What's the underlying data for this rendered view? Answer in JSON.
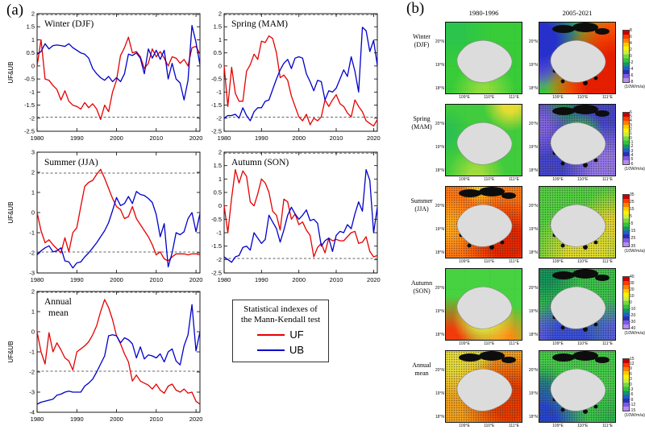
{
  "colors": {
    "uf_red": "#e60000",
    "ub_blue": "#0000cc",
    "dashed_line": "#666666",
    "island_gray": "#dcdcdc",
    "colorbar_palette": [
      "#c80000",
      "#ff3c00",
      "#ff8200",
      "#ffc800",
      "#fff200",
      "#c8ee46",
      "#78d83c",
      "#32c43c",
      "#149664",
      "#1e5fd2",
      "#2830b0",
      "#7e5ae0",
      "#b48cf0"
    ]
  },
  "panel_a": {
    "label": "(a)",
    "xlabel_ticks": [
      1980,
      1990,
      2000,
      2010,
      2020
    ],
    "significance_level": 1.96
  },
  "legend": {
    "title_line1": "Statistical indexes of",
    "title_line2": "the Mann-Kendall test",
    "uf_label": "UF",
    "ub_label": "UB"
  },
  "chart_data": [
    {
      "type": "line",
      "title": "Winter (DJF)",
      "ylabel": "UF&UB",
      "x_start": 1980,
      "x_end": 2021,
      "xticks": [
        1980,
        1990,
        2000,
        2010,
        2020
      ],
      "ylim": [
        -2.5,
        2
      ],
      "yticks": [
        2,
        1.5,
        1,
        0.5,
        0,
        -0.5,
        -1,
        -1.5,
        -2,
        -2.5
      ],
      "dashed_at": [
        1.96,
        -1.96
      ],
      "series": [
        {
          "name": "UF",
          "values": [
            0.0,
            1.0,
            -0.5,
            -0.55,
            -0.75,
            -0.9,
            -1.3,
            -0.95,
            -1.35,
            -1.5,
            -1.55,
            -1.65,
            -1.4,
            -1.6,
            -1.45,
            -1.65,
            -2.05,
            -1.5,
            -1.75,
            -1.0,
            -0.55,
            0.4,
            0.7,
            1.1,
            0.5,
            0.55,
            0.35,
            -0.1,
            0.1,
            0.65,
            0.35,
            0.55,
            0.3,
            0.0,
            0.35,
            0.3,
            0.1,
            0.25,
            0.0,
            0.7,
            0.75,
            0.45
          ]
        },
        {
          "name": "UB",
          "values": [
            0.45,
            0.55,
            0.85,
            0.65,
            0.78,
            0.8,
            0.78,
            0.75,
            0.85,
            0.7,
            0.6,
            0.5,
            0.45,
            0.3,
            -0.1,
            -0.3,
            -0.45,
            -0.55,
            -0.4,
            -0.6,
            -0.45,
            -0.6,
            -0.3,
            0.45,
            0.4,
            0.5,
            0.3,
            -0.3,
            0.65,
            0.3,
            0.6,
            0.25,
            0.6,
            -0.5,
            0.1,
            -0.5,
            -0.65,
            -1.3,
            -0.55,
            1.55,
            0.9,
            0.05
          ]
        }
      ]
    },
    {
      "type": "line",
      "title": "Spring (MAM)",
      "ylabel": "",
      "x_start": 1980,
      "x_end": 2021,
      "xticks": [
        1980,
        1990,
        2000,
        2010,
        2020
      ],
      "ylim": [
        -2.5,
        2
      ],
      "yticks": [
        2,
        1.5,
        1,
        0.5,
        0,
        -0.5,
        -1,
        -1.5,
        -2,
        -2.5
      ],
      "dashed_at": [
        1.96,
        -1.96
      ],
      "series": [
        {
          "name": "UF",
          "values": [
            0.0,
            -1.55,
            -0.05,
            -1.05,
            -1.35,
            -1.35,
            -0.2,
            0.05,
            0.45,
            0.25,
            0.95,
            0.9,
            1.15,
            1.05,
            0.5,
            -0.45,
            -0.35,
            -0.55,
            -1.15,
            -1.55,
            -1.95,
            -2.1,
            -1.85,
            -2.25,
            -2.0,
            -2.1,
            -1.95,
            -1.3,
            -1.55,
            -1.3,
            -1.1,
            -1.45,
            -1.55,
            -1.8,
            -1.95,
            -1.3,
            -1.55,
            -1.75,
            -2.1,
            -2.2,
            -2.3,
            -2.05
          ]
        },
        {
          "name": "UB",
          "values": [
            -2.0,
            -1.9,
            -1.9,
            -1.85,
            -2.0,
            -1.6,
            -1.9,
            -2.1,
            -1.75,
            -1.6,
            -1.6,
            -1.35,
            -1.3,
            -0.9,
            -0.5,
            -0.15,
            0.1,
            0.25,
            -0.1,
            0.3,
            0.35,
            0.3,
            -0.3,
            -0.6,
            -0.95,
            -0.55,
            -0.6,
            -1.3,
            -0.95,
            -1.0,
            -0.85,
            -0.5,
            -0.15,
            -0.4,
            0.35,
            -0.2,
            -1.0,
            1.48,
            1.35,
            0.55,
            0.98,
            0.02
          ]
        }
      ]
    },
    {
      "type": "line",
      "title": "Summer (JJA)",
      "ylabel": "UF&UB",
      "x_start": 1980,
      "x_end": 2021,
      "xticks": [
        1980,
        1990,
        2000,
        2010,
        2020
      ],
      "ylim": [
        -3,
        3
      ],
      "yticks": [
        3,
        2,
        1,
        0,
        -1,
        -2,
        -3
      ],
      "dashed_at": [
        1.96,
        -1.96
      ],
      "series": [
        {
          "name": "UF",
          "values": [
            0.0,
            -0.9,
            -1.5,
            -1.35,
            -1.6,
            -1.8,
            -2.0,
            -1.25,
            -1.95,
            -1.0,
            -0.75,
            0.3,
            1.3,
            1.5,
            1.6,
            1.9,
            2.15,
            1.7,
            1.2,
            0.7,
            0.3,
            0.15,
            -0.3,
            -0.2,
            0.3,
            -0.3,
            -0.6,
            -0.9,
            -1.2,
            -1.6,
            -2.1,
            -1.95,
            -2.3,
            -2.4,
            -2.2,
            -2.05,
            -2.05,
            -2.05,
            -2.1,
            -2.05,
            -2.05,
            -2.1
          ]
        },
        {
          "name": "UB",
          "values": [
            -2.1,
            -1.9,
            -1.75,
            -1.65,
            -1.95,
            -1.9,
            -1.75,
            -2.4,
            -2.45,
            -2.75,
            -2.5,
            -2.45,
            -2.2,
            -2.0,
            -1.75,
            -1.5,
            -1.2,
            -0.9,
            -0.5,
            0.1,
            0.75,
            0.35,
            0.45,
            0.8,
            0.45,
            1.05,
            0.9,
            0.85,
            0.7,
            0.5,
            -0.1,
            -1.2,
            -0.55,
            -2.7,
            -2.0,
            -1.0,
            -1.1,
            -0.95,
            -0.3,
            0.0,
            -0.95,
            -0.05
          ]
        }
      ]
    },
    {
      "type": "line",
      "title": "Autumn (SON)",
      "ylabel": "",
      "x_start": 1980,
      "x_end": 2021,
      "xticks": [
        1980,
        1990,
        2000,
        2010,
        2020
      ],
      "ylim": [
        -2.5,
        2
      ],
      "yticks": [
        2,
        1.5,
        1,
        0.5,
        0,
        -0.5,
        -1,
        -1.5,
        -2,
        -2.5
      ],
      "dashed_at": [
        1.96,
        -1.96
      ],
      "series": [
        {
          "name": "UF",
          "values": [
            0.0,
            -1.0,
            0.3,
            1.35,
            0.85,
            1.3,
            1.1,
            0.15,
            0.0,
            0.45,
            1.0,
            0.85,
            0.5,
            -0.2,
            -0.35,
            -0.9,
            0.25,
            0.15,
            -0.5,
            -0.3,
            -0.7,
            -0.6,
            -0.9,
            -1.1,
            -1.9,
            -1.55,
            -1.4,
            -1.75,
            -1.2,
            -1.3,
            -1.25,
            -1.3,
            -1.3,
            -1.15,
            -1.0,
            -0.95,
            -1.4,
            -1.35,
            -1.15,
            -1.7,
            -1.9,
            -1.85
          ]
        },
        {
          "name": "UB",
          "values": [
            -1.9,
            -2.0,
            -2.1,
            -1.9,
            -1.85,
            -1.55,
            -1.5,
            -1.65,
            -1.0,
            -1.2,
            -1.4,
            -1.25,
            -0.35,
            -0.6,
            -0.85,
            -1.35,
            -0.9,
            -0.35,
            -0.05,
            -0.3,
            -0.5,
            -0.35,
            -0.15,
            -0.55,
            -0.5,
            -0.65,
            -1.5,
            -1.3,
            -1.2,
            -1.7,
            -1.1,
            -0.95,
            -1.0,
            -0.7,
            -0.85,
            -0.3,
            0.15,
            -0.2,
            1.35,
            0.95,
            -1.0,
            -0.05
          ]
        }
      ]
    },
    {
      "type": "line",
      "title": "Annual",
      "title2": "mean",
      "ylabel": "UF&UB",
      "x_start": 1980,
      "x_end": 2021,
      "xticks": [
        1980,
        1990,
        2000,
        2010,
        2020
      ],
      "ylim": [
        -4,
        2
      ],
      "yticks": [
        2,
        1,
        0,
        -1,
        -2,
        -3,
        -4
      ],
      "dashed_at": [
        1.96,
        -1.96
      ],
      "series": [
        {
          "name": "UF",
          "values": [
            0.0,
            -1.0,
            -1.6,
            -0.05,
            -1.0,
            -0.55,
            -0.9,
            -1.3,
            -1.45,
            -1.9,
            -1.0,
            -0.85,
            -0.7,
            -0.5,
            -0.15,
            0.3,
            1.0,
            1.6,
            1.2,
            0.6,
            -0.2,
            -0.6,
            -1.1,
            -1.5,
            -2.45,
            -2.15,
            -2.45,
            -2.55,
            -2.65,
            -2.85,
            -2.6,
            -2.9,
            -3.05,
            -2.7,
            -2.6,
            -2.9,
            -3.0,
            -2.85,
            -3.05,
            -3.0,
            -3.45,
            -3.6
          ]
        },
        {
          "name": "UB",
          "values": [
            -3.6,
            -3.5,
            -3.45,
            -3.4,
            -3.35,
            -3.15,
            -3.1,
            -3.0,
            -2.95,
            -3.0,
            -3.0,
            -3.0,
            -2.7,
            -2.55,
            -2.35,
            -2.0,
            -1.6,
            -1.2,
            -0.2,
            -0.15,
            -0.2,
            -0.55,
            -0.3,
            -0.4,
            -0.6,
            -1.3,
            -0.75,
            -1.35,
            -1.15,
            -1.2,
            -1.3,
            -1.1,
            -1.5,
            -1.0,
            -0.85,
            -1.45,
            -1.65,
            -0.7,
            -0.15,
            1.35,
            -0.95,
            0.0
          ]
        }
      ]
    }
  ],
  "panel_b": {
    "label": "(b)",
    "col_headers": [
      "1980-1996",
      "2005-2021"
    ],
    "unit": "(10W/m/a)",
    "lat_ticks": [
      "20°N",
      "19°N",
      "18°N"
    ],
    "lon_ticks": [
      "109°E",
      "110°E",
      "111°E"
    ],
    "rows": [
      {
        "label_line1": "Winter",
        "label_line2": "(DJF)",
        "colorbar_ticks": [
          "8",
          "6",
          "4",
          "2",
          "0",
          "-2",
          "-4",
          "-6",
          "-8"
        ],
        "maps": [
          {
            "base": "#38cc38",
            "overlays": [
              [
                "50% 100%",
                "#90dc3c",
                8,
                40
              ],
              [
                "10% 10%",
                "#2cc44c",
                10,
                40
              ]
            ],
            "stipple": false,
            "bn": false,
            "bs": false
          },
          {
            "base": "#38c838",
            "overlays": [
              [
                "100% 85%",
                "#e61e00",
                30,
                70
              ],
              [
                "95% 20%",
                "#ff6a00",
                12,
                42
              ],
              [
                "55% 100%",
                "#ff8c00",
                10,
                45
              ],
              [
                "0% 25%",
                "#2830cc",
                18,
                48
              ],
              [
                "0% 60%",
                "#7a5ae0",
                6,
                32
              ],
              [
                "30% 0%",
                "#28b450",
                10,
                35
              ]
            ],
            "stipple": false,
            "bn": true,
            "bs": true
          }
        ]
      },
      {
        "label_line1": "Spring",
        "label_line2": "(MAM)",
        "colorbar_ticks": [
          "6",
          "5",
          "4",
          "3",
          "2",
          "1",
          "0",
          "-1",
          "-2",
          "-3",
          "-4",
          "-5",
          "-6"
        ],
        "maps": [
          {
            "base": "#40cc3c",
            "overlays": [
              [
                "85% 0%",
                "#e6dc32",
                8,
                28
              ],
              [
                "40% 100%",
                "#a0dc3c",
                8,
                35
              ],
              [
                "0% 40%",
                "#2cc050",
                8,
                30
              ]
            ],
            "stipple": false,
            "bn": false,
            "bs": false
          },
          {
            "base": "#4646cc",
            "overlays": [
              [
                "95% 95%",
                "#9678e6",
                18,
                50
              ],
              [
                "0% 30%",
                "#8264e0",
                8,
                35
              ],
              [
                "55% 42%",
                "#3cb44c",
                16,
                40
              ],
              [
                "30% 5%",
                "#1e9650",
                6,
                25
              ]
            ],
            "stipple": true,
            "bn": true,
            "bs": true
          }
        ]
      },
      {
        "label_line1": "Summer",
        "label_line2": "(JJA)",
        "colorbar_ticks": [
          "35",
          "25",
          "15",
          "5",
          "-5",
          "-15",
          "-25",
          "-35"
        ],
        "maps": [
          {
            "base": "#ff7814",
            "overlays": [
              [
                "80% 78%",
                "#e62800",
                18,
                55
              ],
              [
                "0% 55%",
                "#ffaa1e",
                8,
                35
              ],
              [
                "45% 0%",
                "#ffd21e",
                5,
                22
              ]
            ],
            "stipple": true,
            "bn": true,
            "bs": true
          },
          {
            "base": "#55d043",
            "overlays": [
              [
                "60% 100%",
                "#e0dc32",
                22,
                65
              ],
              [
                "100% 55%",
                "#e6d232",
                10,
                45
              ]
            ],
            "stipple": true,
            "bn": false,
            "bs": true
          }
        ]
      },
      {
        "label_line1": "Autumn",
        "label_line2": "(SON)",
        "colorbar_ticks": [
          "40",
          "30",
          "20",
          "10",
          "0",
          "-10",
          "-20",
          "-30",
          "-40"
        ],
        "maps": [
          {
            "base": "#46d241",
            "overlays": [
              [
                "50% 70%",
                "#dcdc3c",
                18,
                50
              ],
              [
                "10% 100%",
                "#f03c0a",
                12,
                45
              ],
              [
                "75% 100%",
                "#ff8c14",
                10,
                40
              ]
            ],
            "stipple": false,
            "bn": false,
            "bs": false
          },
          {
            "base": "#3cc44a",
            "overlays": [
              [
                "40% 100%",
                "#3c50d8",
                20,
                55
              ],
              [
                "0% 100%",
                "#8a6ee6",
                8,
                30
              ],
              [
                "100% 90%",
                "#5a64dc",
                8,
                35
              ],
              [
                "8% 8%",
                "#14965a",
                10,
                38
              ]
            ],
            "stipple": true,
            "bn": true,
            "bs": true
          }
        ]
      },
      {
        "label_line1": "Annual",
        "label_line2": "mean",
        "colorbar_ticks": [
          "15",
          "12",
          "9",
          "6",
          "3",
          "0",
          "-3",
          "-6",
          "-9",
          "-12",
          "-15"
        ],
        "maps": [
          {
            "base": "#f0a01e",
            "overlays": [
              [
                "85% 72%",
                "#e63c00",
                20,
                60
              ],
              [
                "8% 8%",
                "#e6dc3c",
                14,
                45
              ],
              [
                "45% 0%",
                "#c8dc38",
                6,
                22
              ]
            ],
            "stipple": true,
            "bn": true,
            "bs": false
          },
          {
            "base": "#46cc4a",
            "overlays": [
              [
                "0% 100%",
                "#2846cc",
                16,
                48
              ],
              [
                "5% 50%",
                "#289664",
                6,
                30
              ],
              [
                "100% 100%",
                "#32b44c",
                8,
                35
              ]
            ],
            "stipple": true,
            "bn": true,
            "bs": true
          }
        ]
      }
    ]
  }
}
